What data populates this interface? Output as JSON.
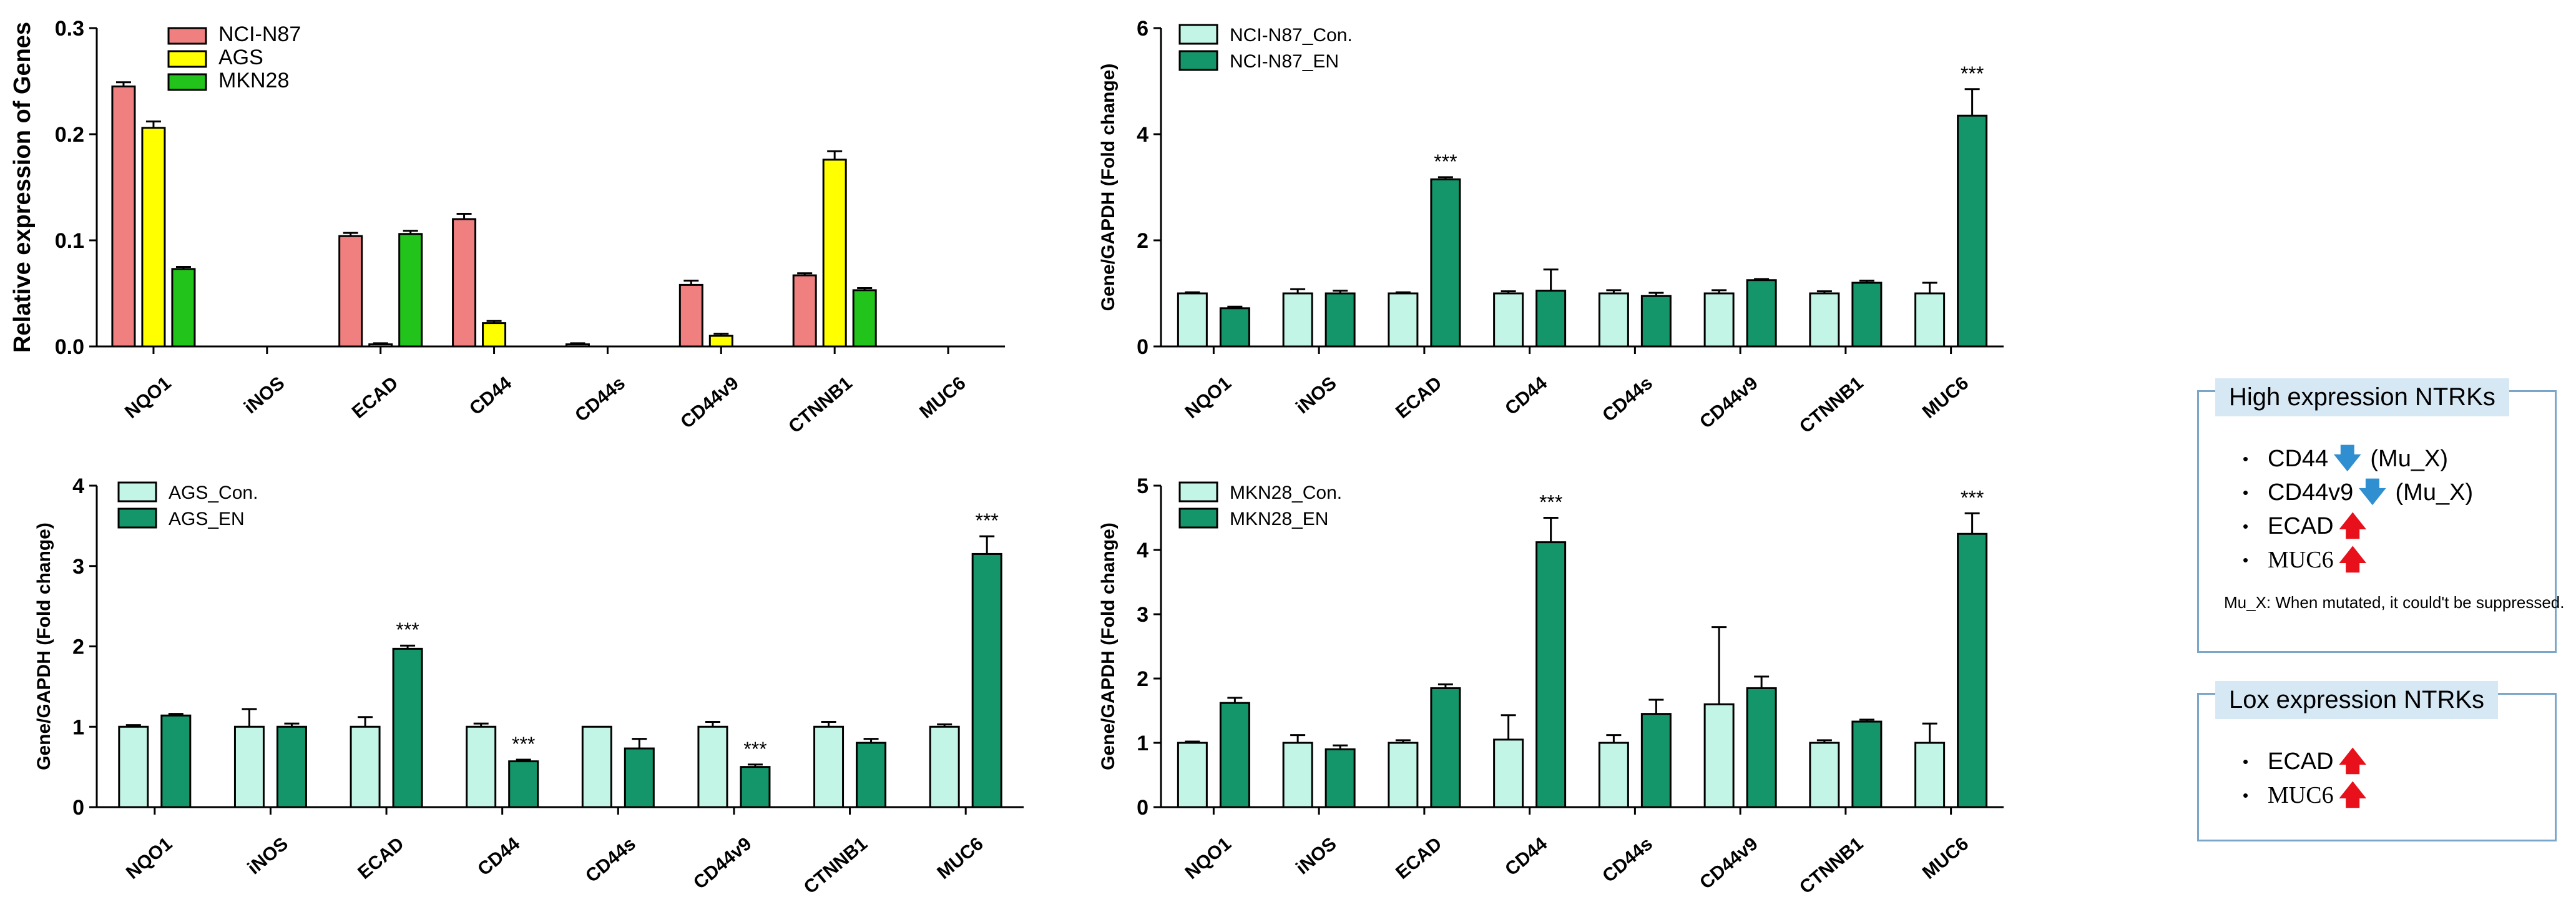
{
  "chart_data": [
    {
      "type": "bar",
      "ylabel": "Relative expression of Genes",
      "ylim": [
        0,
        0.3
      ],
      "yticks": [
        "0.0",
        "0.1",
        "0.2",
        "0.3"
      ],
      "ytick_values": [
        0,
        0.1,
        0.2,
        0.3
      ],
      "categories": [
        "NQO1",
        "iNOS",
        "ECAD",
        "CD44",
        "CD44s",
        "CD44v9",
        "CTNNB1",
        "MUC6"
      ],
      "legend": "top-left",
      "series": [
        {
          "name": "NCI-N87",
          "color": "#f08080",
          "values": [
            0.245,
            0,
            0.104,
            0.12,
            0.002,
            0.058,
            0.067,
            0
          ],
          "errors": [
            0.004,
            0,
            0.003,
            0.005,
            0.001,
            0.004,
            0.002,
            0
          ]
        },
        {
          "name": "AGS",
          "color": "#ffff00",
          "values": [
            0.206,
            0,
            0.002,
            0.022,
            0,
            0.01,
            0.176,
            0
          ],
          "errors": [
            0.006,
            0,
            0.001,
            0.002,
            0,
            0.002,
            0.008,
            0
          ]
        },
        {
          "name": "MKN28",
          "color": "#22c31a",
          "values": [
            0.073,
            0,
            0.106,
            0,
            0,
            0,
            0.053,
            0
          ],
          "errors": [
            0.002,
            0,
            0.003,
            0,
            0,
            0,
            0.002,
            0
          ]
        }
      ],
      "annotations": [
        "",
        "",
        "",
        "",
        "",
        "",
        "",
        ""
      ]
    },
    {
      "type": "bar",
      "ylabel": "Gene/GAPDH (Fold change)",
      "ylim": [
        0,
        6
      ],
      "yticks": [
        "0",
        "2",
        "4",
        "6"
      ],
      "ytick_values": [
        0,
        2,
        4,
        6
      ],
      "categories": [
        "NQO1",
        "iNOS",
        "ECAD",
        "CD44",
        "CD44s",
        "CD44v9",
        "CTNNB1",
        "MUC6"
      ],
      "legend": "top-left",
      "series": [
        {
          "name": "NCI-N87_Con.",
          "color": "#c2f5e6",
          "values": [
            1,
            1,
            1,
            1,
            1,
            1,
            1,
            1
          ],
          "errors": [
            0.02,
            0.08,
            0.02,
            0.04,
            0.06,
            0.06,
            0.04,
            0.2
          ]
        },
        {
          "name": "NCI-N87_EN",
          "color": "#15956a",
          "values": [
            0.72,
            1,
            3.15,
            1.05,
            0.95,
            1.25,
            1.2,
            4.35
          ],
          "errors": [
            0.03,
            0.05,
            0.04,
            0.4,
            0.06,
            0.02,
            0.04,
            0.5
          ]
        }
      ],
      "annotations": [
        "",
        "",
        "***",
        "",
        "",
        "",
        "",
        "***"
      ]
    },
    {
      "type": "bar",
      "ylabel": "Gene/GAPDH (Fold change)",
      "ylim": [
        0,
        4
      ],
      "yticks": [
        "0",
        "1",
        "2",
        "3",
        "4"
      ],
      "ytick_values": [
        0,
        1,
        2,
        3,
        4
      ],
      "categories": [
        "NQO1",
        "iNOS",
        "ECAD",
        "CD44",
        "CD44s",
        "CD44v9",
        "CTNNB1",
        "MUC6"
      ],
      "legend": "top-left",
      "series": [
        {
          "name": "AGS_Con.",
          "color": "#c2f5e6",
          "values": [
            1,
            1,
            1,
            1,
            1,
            1,
            1,
            1
          ],
          "errors": [
            0.02,
            0.22,
            0.12,
            0.04,
            0,
            0.06,
            0.06,
            0.03
          ]
        },
        {
          "name": "AGS_EN",
          "color": "#15956a",
          "values": [
            1.14,
            1,
            1.97,
            0.57,
            0.73,
            0.5,
            0.8,
            3.15
          ],
          "errors": [
            0.02,
            0.04,
            0.04,
            0.02,
            0.12,
            0.03,
            0.05,
            0.22
          ]
        }
      ],
      "annotations": [
        "",
        "",
        "***",
        "***",
        "",
        "***",
        "",
        "***"
      ]
    },
    {
      "type": "bar",
      "ylabel": "Gene/GAPDH (Fold change)",
      "ylim": [
        0,
        5
      ],
      "yticks": [
        "0",
        "1",
        "2",
        "3",
        "4",
        "5"
      ],
      "ytick_values": [
        0,
        1,
        2,
        3,
        4,
        5
      ],
      "categories": [
        "NQO1",
        "iNOS",
        "ECAD",
        "CD44",
        "CD44s",
        "CD44v9",
        "CTNNB1",
        "MUC6"
      ],
      "legend": "top-left",
      "series": [
        {
          "name": "MKN28_Con.",
          "color": "#c2f5e6",
          "values": [
            1,
            1,
            1,
            1.05,
            1,
            1.6,
            1,
            1
          ],
          "errors": [
            0.02,
            0.12,
            0.04,
            0.38,
            0.12,
            1.2,
            0.04,
            0.3
          ]
        },
        {
          "name": "MKN28_EN",
          "color": "#15956a",
          "values": [
            1.62,
            0.9,
            1.85,
            4.12,
            1.45,
            1.85,
            1.33,
            4.25
          ],
          "errors": [
            0.08,
            0.06,
            0.06,
            0.38,
            0.22,
            0.18,
            0.03,
            0.32
          ]
        }
      ],
      "annotations": [
        "",
        "",
        "",
        "***",
        "",
        "",
        "",
        "***"
      ]
    }
  ],
  "summary": {
    "high": {
      "title": "High expression NTRKs",
      "items": [
        {
          "gene": "CD44",
          "direction": "down",
          "note": "(Mu_X)"
        },
        {
          "gene": "CD44v9",
          "direction": "down",
          "note": "(Mu_X)"
        },
        {
          "gene": "ECAD",
          "direction": "up",
          "note": ""
        },
        {
          "gene": "MUC6",
          "direction": "up",
          "note": ""
        }
      ],
      "footnote": "Mu_X: When mutated, it could't be suppressed."
    },
    "low": {
      "title": "Lox expression NTRKs",
      "items": [
        {
          "gene": "ECAD",
          "direction": "up"
        },
        {
          "gene": "MUC6",
          "direction": "up"
        }
      ]
    },
    "bullet": "•",
    "arrow_up": "🡅",
    "arrow_down": "🡇"
  }
}
